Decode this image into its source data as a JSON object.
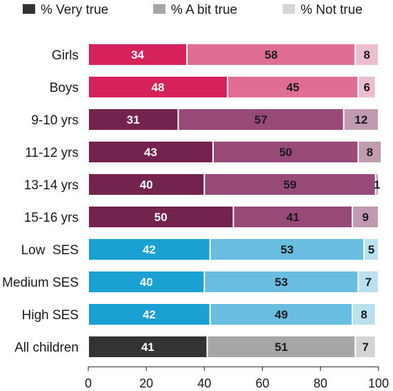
{
  "chart_data": {
    "type": "bar",
    "orientation": "horizontal",
    "stacked": true,
    "title": "",
    "xlabel": "",
    "ylabel": "",
    "xlim": [
      0,
      100
    ],
    "xticks": [
      0,
      20,
      40,
      60,
      80,
      100
    ],
    "grid": false,
    "legend_position": "top",
    "legend": [
      "% Very true",
      "% A bit true",
      "% Not true"
    ],
    "categories": [
      "Girls",
      "Boys",
      "9-10 yrs",
      "11-12 yrs",
      "13-14 yrs",
      "15-16 yrs",
      "Low  SES",
      "Medium SES",
      "High SES",
      "All children"
    ],
    "series": [
      {
        "name": "% Very true",
        "values": [
          34,
          48,
          31,
          43,
          40,
          50,
          42,
          40,
          42,
          41
        ]
      },
      {
        "name": "% A bit true",
        "values": [
          58,
          45,
          57,
          50,
          59,
          41,
          53,
          53,
          49,
          51
        ]
      },
      {
        "name": "% Not true",
        "values": [
          8,
          6,
          12,
          8,
          1,
          9,
          5,
          7,
          8,
          7
        ]
      }
    ],
    "group_colors": {
      "gender": [
        "#d6215a",
        "#e06e94",
        "#ecbccf"
      ],
      "age": [
        "#74224e",
        "#974a78",
        "#c09aaf"
      ],
      "ses": [
        "#1aa0d2",
        "#69bde0",
        "#b9e0ef"
      ],
      "all": [
        "#333333",
        "#a6a6a6",
        "#d4d4d4"
      ]
    },
    "row_groups": [
      "gender",
      "gender",
      "age",
      "age",
      "age",
      "age",
      "ses",
      "ses",
      "ses",
      "all"
    ],
    "legend_colors": [
      "#333333",
      "#a6a6a6",
      "#d4d4d4"
    ]
  }
}
